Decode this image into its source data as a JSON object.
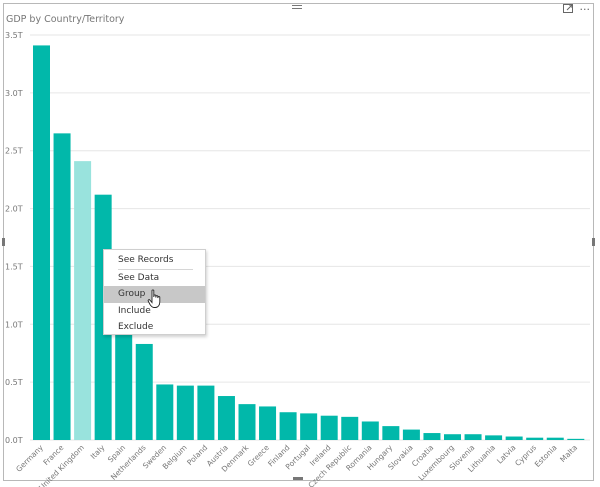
{
  "visual": {
    "title": "GDP by Country/Territory"
  },
  "toolbar": {
    "focus_icon": "focus-mode-icon",
    "more_icon": "more-options-icon",
    "more_glyph": "···"
  },
  "colors": {
    "bar": "#01b8aa",
    "bar_highlight": "#99e3dd",
    "grid": "#e6e6e6",
    "axis_text": "#777777"
  },
  "context_menu": {
    "items": [
      {
        "label": "See Records"
      },
      {
        "label": "See Data"
      },
      {
        "label": "Group",
        "active": true
      },
      {
        "label": "Include"
      },
      {
        "label": "Exclude"
      }
    ]
  },
  "chart_data": {
    "type": "bar",
    "title": "GDP by Country/Territory",
    "xlabel": "",
    "ylabel": "",
    "categories": [
      "Germany",
      "France",
      "United Kingdom",
      "Italy",
      "Spain",
      "Netherlands",
      "Sweden",
      "Belgium",
      "Poland",
      "Austria",
      "Denmark",
      "Greece",
      "Finland",
      "Portugal",
      "Ireland",
      "Czech Republic",
      "Romania",
      "Hungary",
      "Slovakia",
      "Croatia",
      "Luxembourg",
      "Slovenia",
      "Lithuania",
      "Latvia",
      "Cyprus",
      "Estonia",
      "Malta"
    ],
    "values": [
      3.41,
      2.65,
      2.41,
      2.12,
      1.02,
      0.83,
      0.48,
      0.47,
      0.47,
      0.38,
      0.31,
      0.29,
      0.24,
      0.23,
      0.21,
      0.2,
      0.16,
      0.12,
      0.09,
      0.06,
      0.05,
      0.05,
      0.04,
      0.03,
      0.02,
      0.02,
      0.01
    ],
    "highlighted": [
      "United Kingdom"
    ],
    "yticks": [
      0,
      0.5,
      1.0,
      1.5,
      2.0,
      2.5,
      3.0,
      3.5
    ],
    "ytick_labels": [
      "0.0T",
      "0.5T",
      "1.0T",
      "1.5T",
      "2.0T",
      "2.5T",
      "3.0T",
      "3.5T"
    ],
    "ylim": [
      0,
      3.5
    ],
    "grid": true,
    "legend": "none"
  }
}
